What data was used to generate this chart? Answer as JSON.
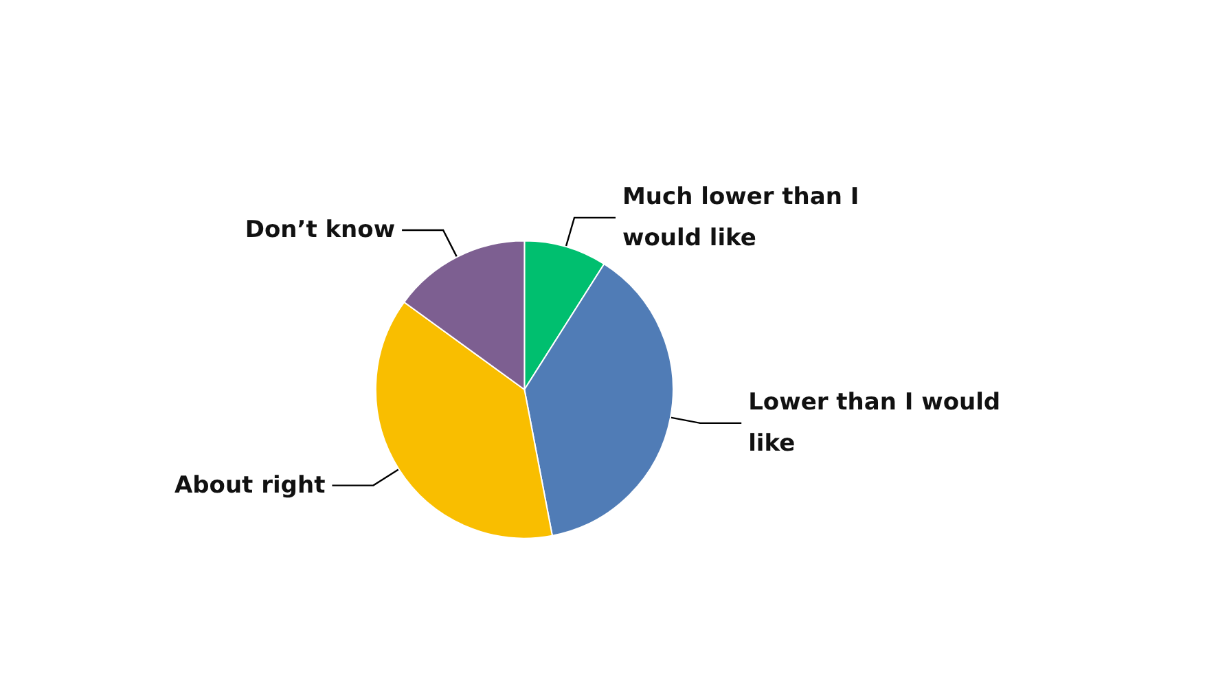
{
  "chart_data": {
    "type": "pie",
    "categories": [
      "Much lower than I would like",
      "Lower than I would like",
      "About right",
      "Don’t know"
    ],
    "values": [
      9,
      38,
      38,
      15
    ],
    "colors": [
      "#00bf6f",
      "#507cb6",
      "#f9be00",
      "#7d5f91"
    ],
    "legend": false
  }
}
